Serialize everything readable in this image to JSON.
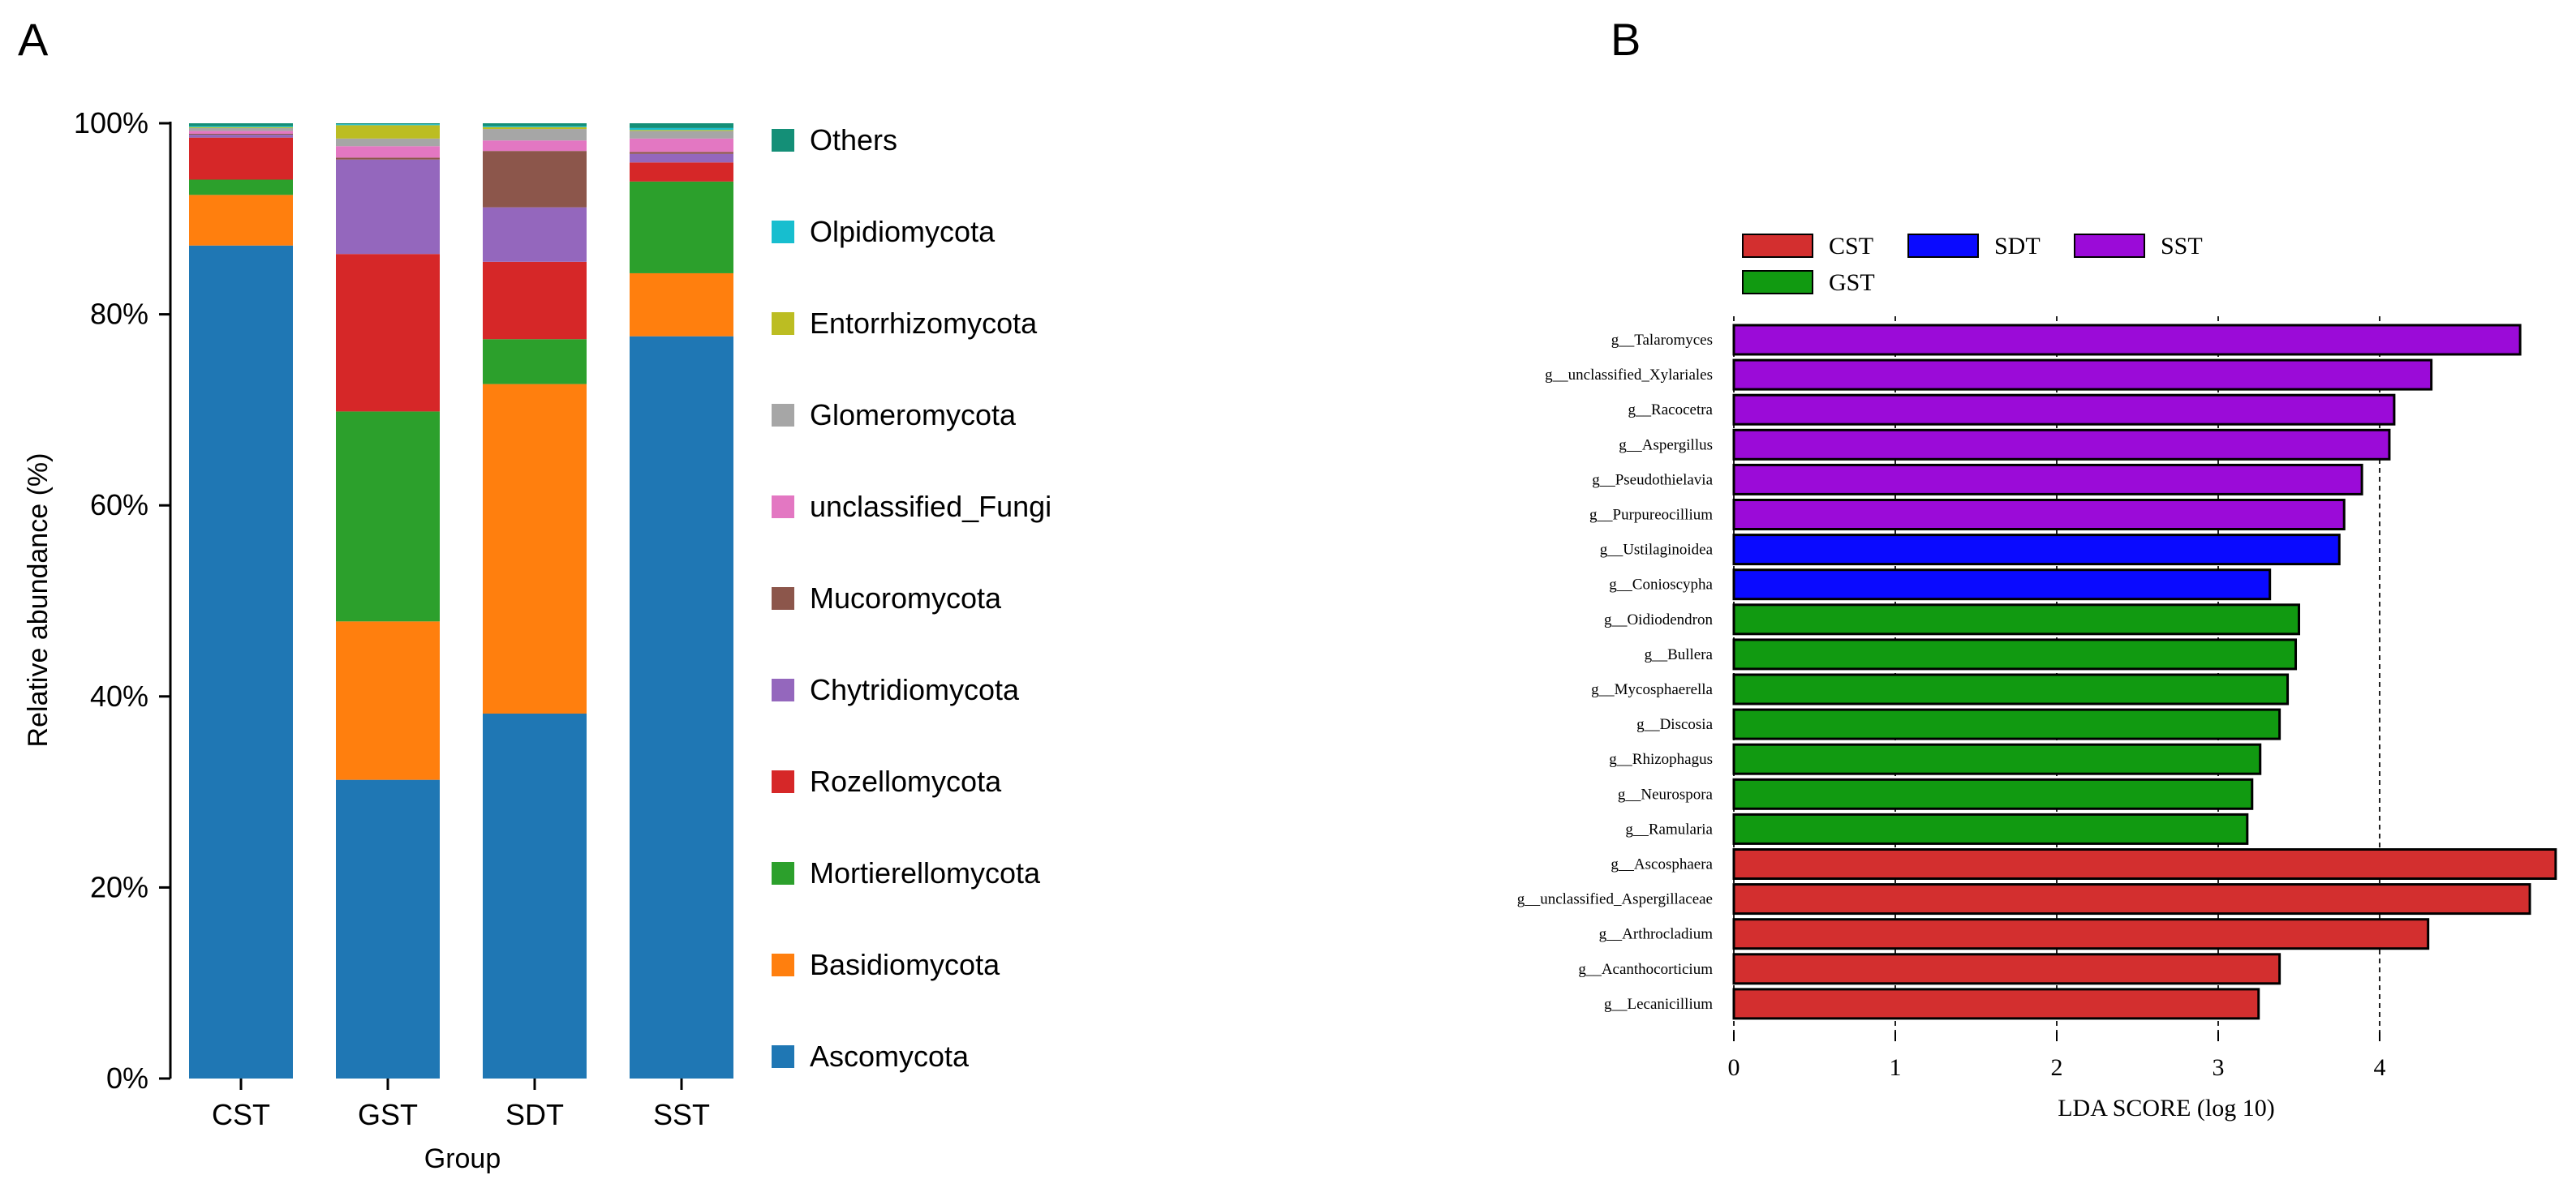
{
  "panels": {
    "a_label": "A",
    "b_label": "B"
  },
  "chart_data": [
    {
      "type": "bar",
      "stacked": true,
      "normalized": true,
      "xlabel": "Group",
      "ylabel": "Relative abundance (%)",
      "categories": [
        "CST",
        "GST",
        "SDT",
        "SST"
      ],
      "ylim": [
        0,
        100
      ],
      "yticks": [
        "0%",
        "20%",
        "40%",
        "60%",
        "80%",
        "100%"
      ],
      "legend_position": "right",
      "series": [
        {
          "name": "Ascomycota",
          "color": "#1f77b4",
          "values": [
            87.2,
            31.3,
            38.2,
            77.7
          ]
        },
        {
          "name": "Basidiomycota",
          "color": "#ff7f0e",
          "values": [
            5.3,
            16.6,
            34.5,
            6.6
          ]
        },
        {
          "name": "Mortierellomycota",
          "color": "#2ca02c",
          "values": [
            1.6,
            22.0,
            4.7,
            9.6
          ]
        },
        {
          "name": "Rozellomycota",
          "color": "#d62728",
          "values": [
            4.4,
            16.5,
            8.1,
            2.0
          ]
        },
        {
          "name": "Chytridiomycota",
          "color": "#9467bd",
          "values": [
            0.3,
            9.9,
            5.7,
            0.9
          ]
        },
        {
          "name": "Mucoromycota",
          "color": "#8c564b",
          "values": [
            0.1,
            0.2,
            5.9,
            0.2
          ]
        },
        {
          "name": "unclassified_Fungi",
          "color": "#e377c2",
          "values": [
            0.3,
            1.2,
            1.1,
            1.4
          ]
        },
        {
          "name": "Glomeromycota",
          "color": "#a6a6a6",
          "values": [
            0.3,
            0.8,
            1.2,
            0.8
          ]
        },
        {
          "name": "Entorrhizomycota",
          "color": "#bcbd22",
          "values": [
            0.1,
            1.4,
            0.2,
            0.1
          ]
        },
        {
          "name": "Olpidiomycota",
          "color": "#17becf",
          "values": [
            0.1,
            0.1,
            0.1,
            0.2
          ]
        },
        {
          "name": "Others",
          "color": "#148f77",
          "values": [
            0.3,
            0.1,
            0.3,
            0.5
          ]
        }
      ]
    },
    {
      "type": "bar",
      "orientation": "horizontal",
      "xlabel": "LDA SCORE (log 10)",
      "xlim": [
        0,
        5.1
      ],
      "xticks": [
        0,
        1,
        2,
        3,
        4
      ],
      "grid": "vertical dashed at 0, 1, 2, 3, 4",
      "legend_position": "top",
      "legend": [
        {
          "name": "CST",
          "color": "#d32f2f"
        },
        {
          "name": "SDT",
          "color": "#0a0aff"
        },
        {
          "name": "SST",
          "color": "#9b0bd8"
        },
        {
          "name": "GST",
          "color": "#119a11"
        }
      ],
      "bars": [
        {
          "label": "g__Talaromyces",
          "group": "SST",
          "value": 4.87
        },
        {
          "label": "g__unclassified_Xylariales",
          "group": "SST",
          "value": 4.32
        },
        {
          "label": "g__Racocetra",
          "group": "SST",
          "value": 4.09
        },
        {
          "label": "g__Aspergillus",
          "group": "SST",
          "value": 4.06
        },
        {
          "label": "g__Pseudothielavia",
          "group": "SST",
          "value": 3.89
        },
        {
          "label": "g__Purpureocillium",
          "group": "SST",
          "value": 3.78
        },
        {
          "label": "g__Ustilaginoidea",
          "group": "SDT",
          "value": 3.75
        },
        {
          "label": "g__Conioscypha",
          "group": "SDT",
          "value": 3.32
        },
        {
          "label": "g__Oidiodendron",
          "group": "GST",
          "value": 3.5
        },
        {
          "label": "g__Bullera",
          "group": "GST",
          "value": 3.48
        },
        {
          "label": "g__Mycosphaerella",
          "group": "GST",
          "value": 3.43
        },
        {
          "label": "g__Discosia",
          "group": "GST",
          "value": 3.38
        },
        {
          "label": "g__Rhizophagus",
          "group": "GST",
          "value": 3.26
        },
        {
          "label": "g__Neurospora",
          "group": "GST",
          "value": 3.21
        },
        {
          "label": "g__Ramularia",
          "group": "GST",
          "value": 3.18
        },
        {
          "label": "g__Ascosphaera",
          "group": "CST",
          "value": 5.09
        },
        {
          "label": "g__unclassified_Aspergillaceae",
          "group": "CST",
          "value": 4.93
        },
        {
          "label": "g__Arthrocladium",
          "group": "CST",
          "value": 4.3
        },
        {
          "label": "g__Acanthocorticium",
          "group": "CST",
          "value": 3.38
        },
        {
          "label": "g__Lecanicillium",
          "group": "CST",
          "value": 3.25
        }
      ]
    }
  ]
}
